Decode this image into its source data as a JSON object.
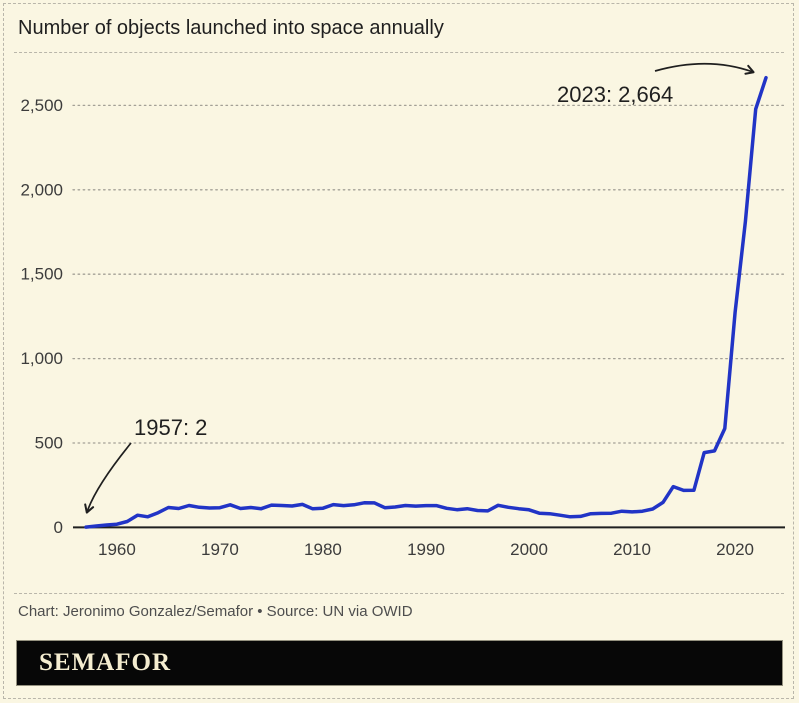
{
  "header": {
    "title": "Number of objects launched into space annually"
  },
  "chart_data": {
    "type": "line",
    "title": "Number of objects launched into space annually",
    "xlabel": "",
    "ylabel": "",
    "xlim": [
      1957,
      2023
    ],
    "ylim": [
      0,
      2750
    ],
    "grid": "horizontal-dotted",
    "legend": "none",
    "xticks": [
      1960,
      1970,
      1980,
      1990,
      2000,
      2010,
      2020
    ],
    "yticks": [
      0,
      500,
      1000,
      1500,
      2000,
      2500
    ],
    "ytick_labels": [
      "0",
      "500",
      "1,000",
      "1,500",
      "2,000",
      "2,500"
    ],
    "x": [
      1957,
      1958,
      1959,
      1960,
      1961,
      1962,
      1963,
      1964,
      1965,
      1966,
      1967,
      1968,
      1969,
      1970,
      1971,
      1972,
      1973,
      1974,
      1975,
      1976,
      1977,
      1978,
      1979,
      1980,
      1981,
      1982,
      1983,
      1984,
      1985,
      1986,
      1987,
      1988,
      1989,
      1990,
      1991,
      1992,
      1993,
      1994,
      1995,
      1996,
      1997,
      1998,
      1999,
      2000,
      2001,
      2002,
      2003,
      2004,
      2005,
      2006,
      2007,
      2008,
      2009,
      2010,
      2011,
      2012,
      2013,
      2014,
      2015,
      2016,
      2017,
      2018,
      2019,
      2020,
      2021,
      2022,
      2023
    ],
    "values": [
      2,
      8,
      14,
      19,
      35,
      72,
      63,
      87,
      118,
      112,
      130,
      119,
      115,
      117,
      134,
      112,
      118,
      111,
      132,
      130,
      127,
      136,
      110,
      114,
      135,
      129,
      134,
      146,
      145,
      117,
      121,
      130,
      126,
      129,
      129,
      113,
      105,
      111,
      100,
      98,
      131,
      119,
      111,
      104,
      84,
      81,
      72,
      63,
      65,
      81,
      83,
      84,
      96,
      92,
      96,
      109,
      148,
      242,
      219,
      220,
      443,
      453,
      586,
      1274,
      1813,
      2478,
      2664
    ],
    "annotations": [
      {
        "text": "1957: 2",
        "year": 1957,
        "value": 2
      },
      {
        "text": "2023: 2,664",
        "year": 2023,
        "value": 2664
      }
    ]
  },
  "footer": {
    "credit": "Chart: Jeronimo Gonzalez/Semafor • Source: UN via OWID",
    "logo": "SEMAFOR"
  },
  "colors": {
    "background": "#FAF6E2",
    "line": "#2134C6",
    "frame_dash": "#B9B6AA",
    "grid_dot": "#A3A096",
    "axis": "#1F1F1F",
    "tick_text": "#3C3C3C",
    "title_text": "#1F1F1F",
    "annotation_text": "#1F1F1F",
    "credit_text": "#4E4E4E",
    "logo_bar_bg": "#070707",
    "logo_bar_border": "#94917F",
    "logo_text": "#F5EDD0"
  }
}
